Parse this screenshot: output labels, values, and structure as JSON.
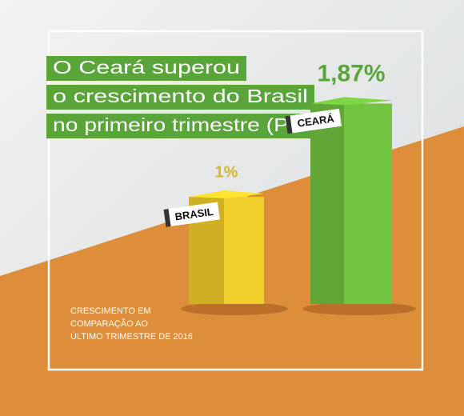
{
  "chart_data": {
    "type": "bar3d",
    "title_lines": [
      "O Ceará superou",
      "o crescimento do Brasil",
      "no primeiro trimestre (PIB)"
    ],
    "note_lines": [
      "CRESCIMENTO EM",
      "COMPARAÇÃO AO",
      "ÚLTIMO TRIMESTRE DE 2016"
    ],
    "categories": [
      "BRASIL",
      "CEARÁ"
    ],
    "values": [
      1,
      1.87
    ],
    "value_labels": [
      "1%",
      "1,87%"
    ],
    "colors": [
      "#f3cf2c",
      "#72c33f"
    ]
  }
}
